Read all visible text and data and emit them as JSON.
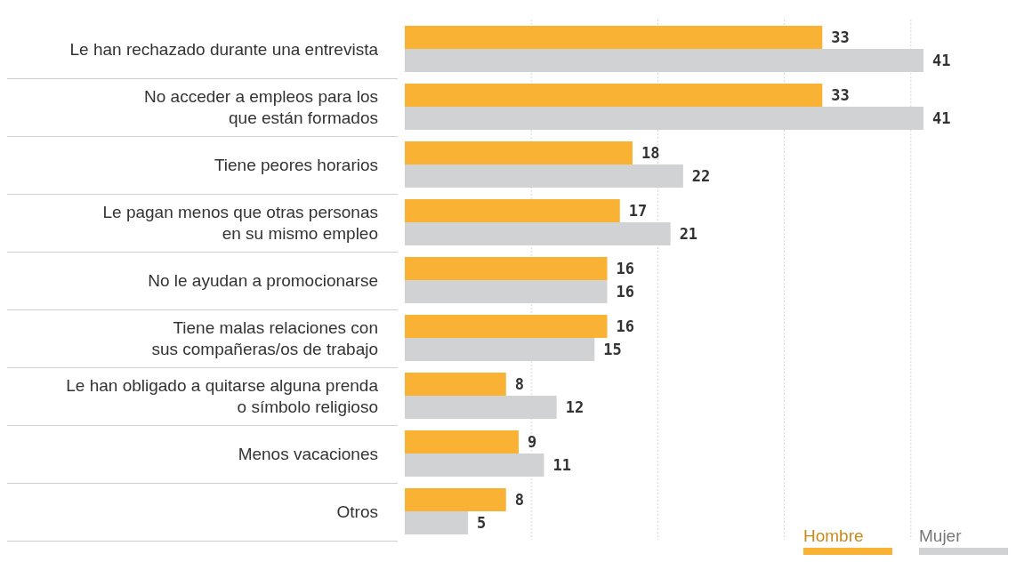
{
  "chart_data": {
    "type": "bar",
    "orientation": "horizontal",
    "categories": [
      "Le han rechazado durante una entrevista",
      "No acceder a empleos para los\nque están formados",
      "Tiene peores horarios",
      "Le pagan menos que otras personas\nen su mismo empleo",
      "No le ayudan a promocionarse",
      "Tiene malas relaciones con\nsus compañeras/os de trabajo",
      "Le han obligado a quitarse alguna prenda\no símbolo religioso",
      "Menos vacaciones",
      "Otros"
    ],
    "series": [
      {
        "name": "Hombre",
        "color": "#f9b233",
        "values": [
          33,
          33,
          18,
          17,
          16,
          16,
          8,
          9,
          8
        ]
      },
      {
        "name": "Mujer",
        "color": "#d1d2d4",
        "values": [
          41,
          41,
          22,
          21,
          16,
          15,
          12,
          11,
          5
        ]
      }
    ],
    "xticks": [
      {
        "value": 10,
        "label": null
      },
      {
        "value": 20,
        "label": null
      },
      {
        "value": 30,
        "label": null
      },
      {
        "value": 40,
        "label": null
      }
    ],
    "grid": "x",
    "tick_labels": "y",
    "data_labels": true,
    "legend": "bottom right"
  }
}
